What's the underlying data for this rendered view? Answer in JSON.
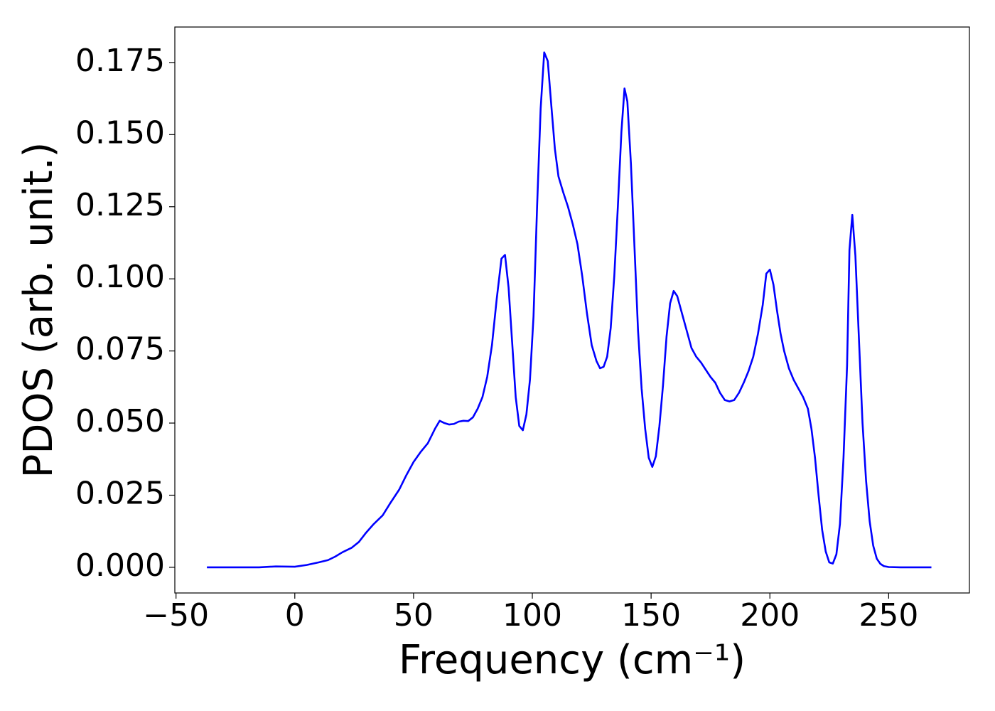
{
  "chart_data": {
    "type": "line",
    "xlabel": "Frequency (cm⁻¹)",
    "ylabel": "PDOS (arb. unit.)",
    "xlim": [
      -50.5,
      284
    ],
    "ylim": [
      -0.0089,
      0.1873
    ],
    "xticks": [
      {
        "value": -50,
        "label": "−50"
      },
      0,
      50,
      100,
      150,
      200,
      250
    ],
    "yticks": [
      {
        "value": 0,
        "label": "0.000"
      },
      {
        "value": 0.025,
        "label": "0.025"
      },
      {
        "value": 0.05,
        "label": "0.050"
      },
      {
        "value": 0.075,
        "label": "0.075"
      },
      {
        "value": 0.1,
        "label": "0.100"
      },
      {
        "value": 0.125,
        "label": "0.125"
      },
      {
        "value": 0.15,
        "label": "0.150"
      },
      {
        "value": 0.175,
        "label": "0.175"
      }
    ],
    "grid": false,
    "series": [
      {
        "color": "#0000ff",
        "x": [
          -37,
          -15,
          -8,
          0,
          5,
          10,
          14,
          17,
          20,
          24,
          27,
          30,
          33,
          37,
          40,
          44,
          47,
          50,
          53,
          56,
          59,
          61,
          63,
          65,
          67,
          69,
          71,
          73,
          75,
          77,
          79,
          81,
          83,
          85,
          87,
          88.5,
          90,
          91.5,
          93,
          94.5,
          96,
          97.5,
          99,
          100.5,
          102,
          103.5,
          105,
          106.5,
          108,
          109.5,
          111,
          113,
          115,
          117,
          119,
          121,
          123,
          125,
          127,
          128.5,
          130,
          131.5,
          133,
          134.5,
          136,
          137.5,
          138.8,
          140,
          141.5,
          143,
          144.5,
          146,
          147.5,
          149,
          150.5,
          152,
          153.5,
          155,
          156.5,
          158,
          159.5,
          161,
          163,
          165,
          167,
          169,
          171,
          173,
          175,
          177,
          179,
          181,
          183,
          185,
          187,
          189,
          191,
          193,
          195,
          197,
          198.5,
          200,
          201.5,
          203,
          204.5,
          206,
          208,
          210,
          212,
          214,
          216,
          217.5,
          219,
          220.5,
          222,
          223.5,
          225,
          226.5,
          228,
          229.5,
          231,
          232.5,
          233.5,
          234.7,
          236,
          237.5,
          239,
          240.5,
          242,
          243.5,
          245,
          246.5,
          248,
          250,
          255,
          268
        ],
        "values": [
          0,
          0,
          0.0003,
          0.0002,
          0.0008,
          0.0017,
          0.0025,
          0.0037,
          0.0052,
          0.0068,
          0.0088,
          0.012,
          0.0148,
          0.018,
          0.022,
          0.027,
          0.032,
          0.0365,
          0.04,
          0.043,
          0.048,
          0.0508,
          0.05,
          0.0495,
          0.0497,
          0.0505,
          0.0508,
          0.0507,
          0.052,
          0.055,
          0.059,
          0.066,
          0.077,
          0.093,
          0.107,
          0.1083,
          0.097,
          0.078,
          0.059,
          0.049,
          0.0475,
          0.053,
          0.065,
          0.087,
          0.125,
          0.159,
          0.1785,
          0.1755,
          0.16,
          0.145,
          0.1355,
          0.13,
          0.125,
          0.119,
          0.112,
          0.101,
          0.088,
          0.077,
          0.0715,
          0.069,
          0.0695,
          0.073,
          0.083,
          0.101,
          0.125,
          0.151,
          0.166,
          0.1615,
          0.14,
          0.111,
          0.082,
          0.062,
          0.048,
          0.038,
          0.0348,
          0.0385,
          0.049,
          0.063,
          0.08,
          0.0915,
          0.0958,
          0.094,
          0.088,
          0.082,
          0.076,
          0.073,
          0.071,
          0.0685,
          0.066,
          0.064,
          0.0605,
          0.058,
          0.0575,
          0.058,
          0.0605,
          0.064,
          0.068,
          0.073,
          0.081,
          0.091,
          0.1018,
          0.1032,
          0.098,
          0.089,
          0.081,
          0.075,
          0.069,
          0.065,
          0.062,
          0.059,
          0.055,
          0.048,
          0.038,
          0.025,
          0.013,
          0.0055,
          0.0017,
          0.0013,
          0.0045,
          0.015,
          0.038,
          0.07,
          0.11,
          0.1222,
          0.108,
          0.079,
          0.05,
          0.03,
          0.016,
          0.0075,
          0.003,
          0.0012,
          0.0004,
          0.0001,
          0,
          0
        ]
      }
    ]
  }
}
